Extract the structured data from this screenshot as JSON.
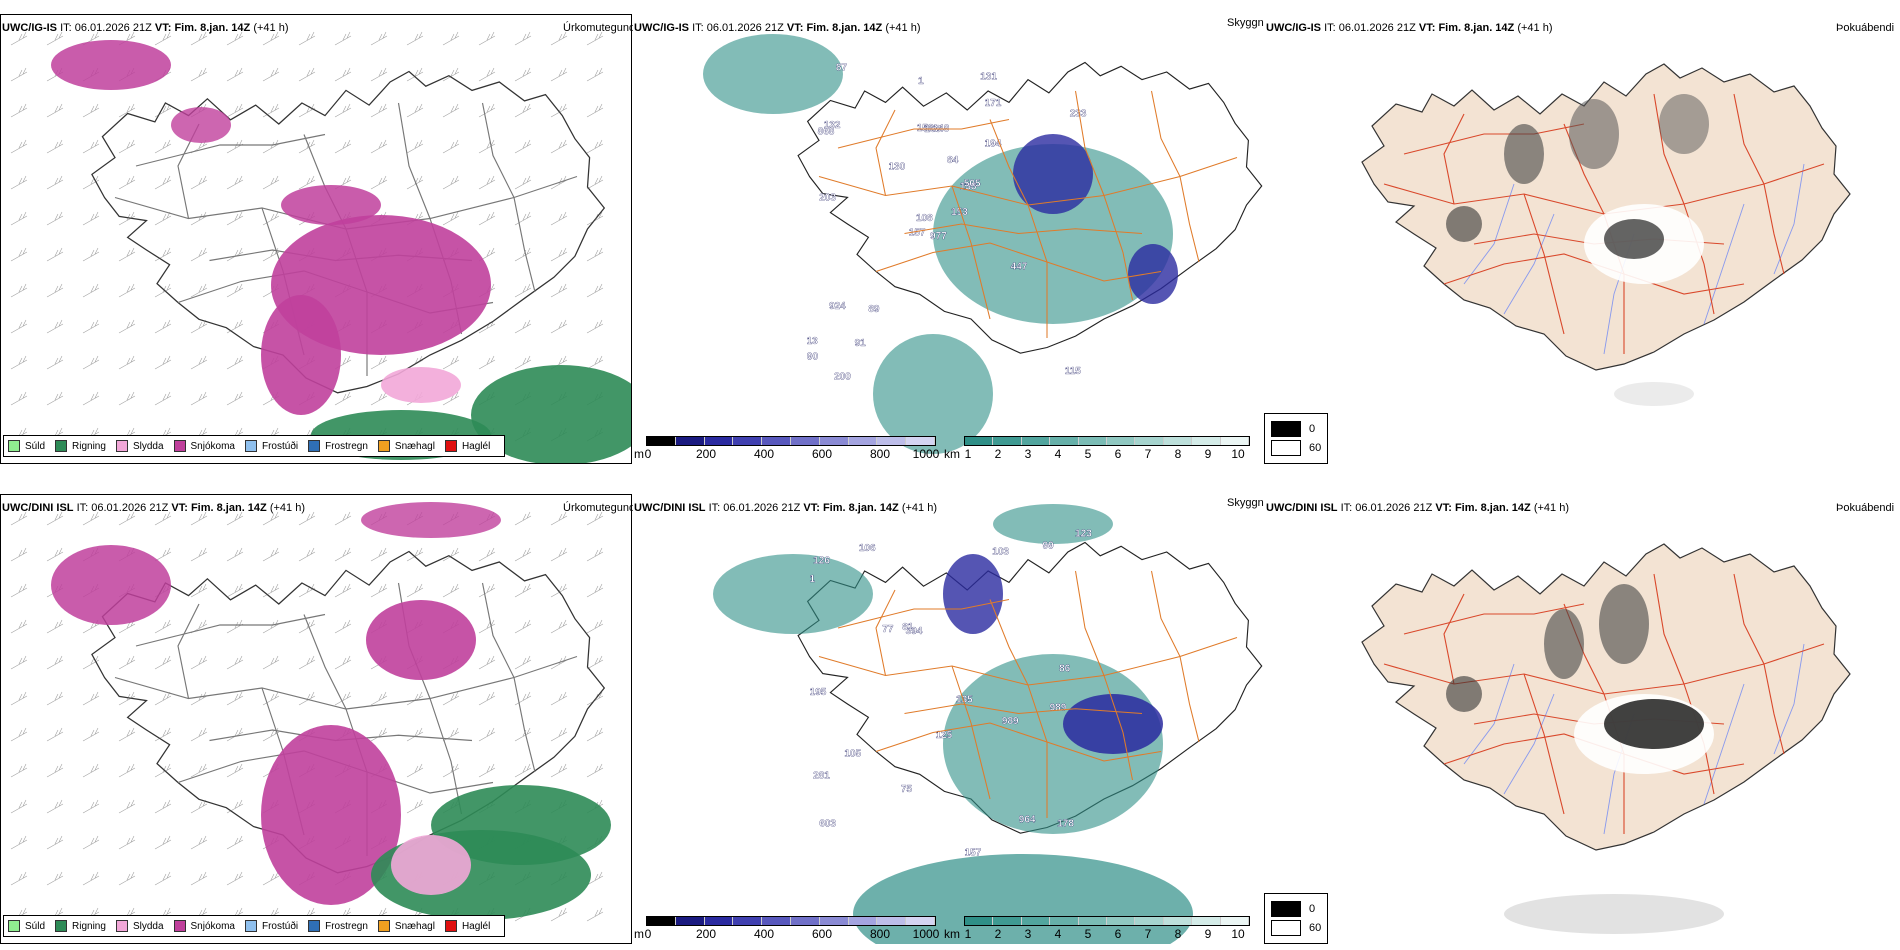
{
  "rows": [
    {
      "model": "UWC/IG-IS",
      "it_label": "IT:",
      "it_value": "06.01.2026 21Z",
      "vt_label": "VT:",
      "vt_value": "Fim. 8.jan. 14Z",
      "lead": "(+41 h)",
      "panels": [
        {
          "title": "Úrkomutegund"
        },
        {
          "title": "Skyggni",
          "labels": [
            "977",
            "868",
            "108",
            "13",
            "138",
            "89",
            "131",
            "148",
            "171",
            "153",
            "87",
            "115",
            "203",
            "233",
            "157",
            "194",
            "200",
            "156",
            "84",
            "924",
            "130",
            "90",
            "91",
            "168",
            "505",
            "447",
            "132",
            "1"
          ]
        },
        {
          "title": "Þokuábendi"
        }
      ]
    },
    {
      "model": "UWC/DINI ISL",
      "it_label": "IT:",
      "it_value": "06.01.2026 21Z",
      "vt_label": "VT:",
      "vt_value": "Fim. 8.jan. 14Z",
      "lead": "(+41 h)",
      "panels": [
        {
          "title": "Úrkomutegund"
        },
        {
          "title": "Skyggni",
          "labels": [
            "989",
            "989",
            "603",
            "106",
            "394",
            "964",
            "281",
            "103",
            "77",
            "157",
            "1",
            "195",
            "126",
            "178",
            "75",
            "86",
            "125",
            "135",
            "81",
            "105",
            "123",
            "99"
          ]
        },
        {
          "title": "Þokuábendi"
        }
      ]
    }
  ],
  "precip_legend": [
    {
      "label": "Súld",
      "color": "#90ee90"
    },
    {
      "label": "Rigning",
      "color": "#2e8b57"
    },
    {
      "label": "Slydda",
      "color": "#f2a7d8"
    },
    {
      "label": "Snjókoma",
      "color": "#c0409c"
    },
    {
      "label": "Frostúði",
      "color": "#8fc0ee"
    },
    {
      "label": "Frostregn",
      "color": "#2f6fb5"
    },
    {
      "label": "Snæhagl",
      "color": "#f0a020"
    },
    {
      "label": "Haglél",
      "color": "#e01010"
    }
  ],
  "cloud_scale": {
    "unit": "m",
    "ticks": [
      "0",
      "200",
      "400",
      "600",
      "800",
      "1000"
    ]
  },
  "vis_scale": {
    "unit": "km",
    "ticks": [
      "1",
      "2",
      "3",
      "4",
      "5",
      "6",
      "7",
      "8",
      "9",
      "10"
    ]
  },
  "fog_legend": [
    {
      "label": "0",
      "color": "#000000"
    },
    {
      "label": "60",
      "color": "#ffffff"
    }
  ],
  "colors": {
    "snow": "#c0409c",
    "rain": "#2e8b57",
    "sleet": "#f2a7d8",
    "teal": "#2f8f87",
    "blue": "#2a2aa0",
    "road": "#e07b2a",
    "roadred": "#d9482b",
    "land": "#f3e3d3",
    "river": "#8899ee"
  }
}
